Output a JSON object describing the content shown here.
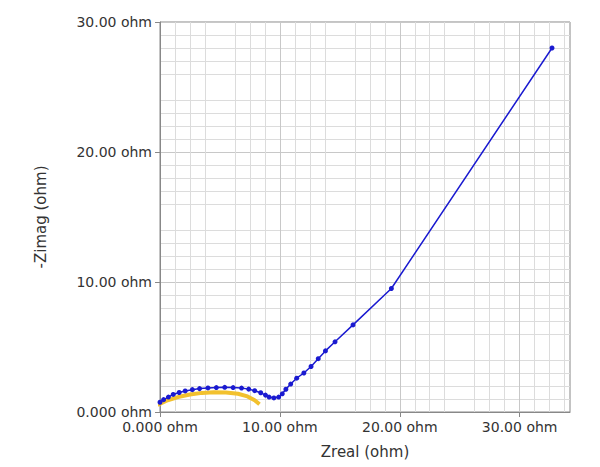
{
  "chart_data": {
    "type": "line",
    "x_label": "Zreal (ohm)",
    "y_label": "-Zimag (ohm)",
    "xlim": [
      0,
      34.2
    ],
    "ylim": [
      0,
      30
    ],
    "xticks": [
      {
        "value": 0,
        "label": "0.000 ohm"
      },
      {
        "value": 10,
        "label": "10.00 ohm"
      },
      {
        "value": 20,
        "label": "20.00 ohm"
      },
      {
        "value": 30,
        "label": "30.00 ohm"
      }
    ],
    "yticks": [
      {
        "value": 0,
        "label": "0.000 ohm"
      },
      {
        "value": 10,
        "label": "10.00 ohm"
      },
      {
        "value": 20,
        "label": "20.00 ohm"
      },
      {
        "value": 30,
        "label": "30.00 ohm"
      }
    ],
    "grid": true,
    "series": [
      {
        "color": "#f2c12e",
        "marker": "none",
        "line_style": "solid",
        "x": [
          -0.2,
          0.5,
          1.5,
          2.5,
          3.5,
          4.5,
          5.5,
          6.5,
          7.3,
          7.9,
          8.3
        ],
        "values": [
          0.55,
          0.85,
          1.15,
          1.35,
          1.47,
          1.52,
          1.5,
          1.4,
          1.2,
          0.9,
          0.6
        ]
      },
      {
        "color": "#1a1ad0",
        "marker": "circle",
        "line_style": "solid",
        "x": [
          0.0,
          0.3,
          0.7,
          1.1,
          1.6,
          2.1,
          2.7,
          3.3,
          4.0,
          4.7,
          5.4,
          6.1,
          6.8,
          7.4,
          7.9,
          8.4,
          8.8,
          9.1,
          9.5,
          9.9,
          10.2,
          10.5,
          10.9,
          11.4,
          12.0,
          12.6,
          13.2,
          13.8,
          14.6,
          16.1,
          19.3,
          32.7
        ],
        "values": [
          0.75,
          0.95,
          1.15,
          1.35,
          1.5,
          1.62,
          1.72,
          1.8,
          1.85,
          1.88,
          1.9,
          1.88,
          1.84,
          1.76,
          1.64,
          1.48,
          1.3,
          1.15,
          1.08,
          1.15,
          1.4,
          1.75,
          2.15,
          2.6,
          3.0,
          3.5,
          4.1,
          4.7,
          5.4,
          6.7,
          9.5,
          28.0
        ]
      }
    ]
  }
}
